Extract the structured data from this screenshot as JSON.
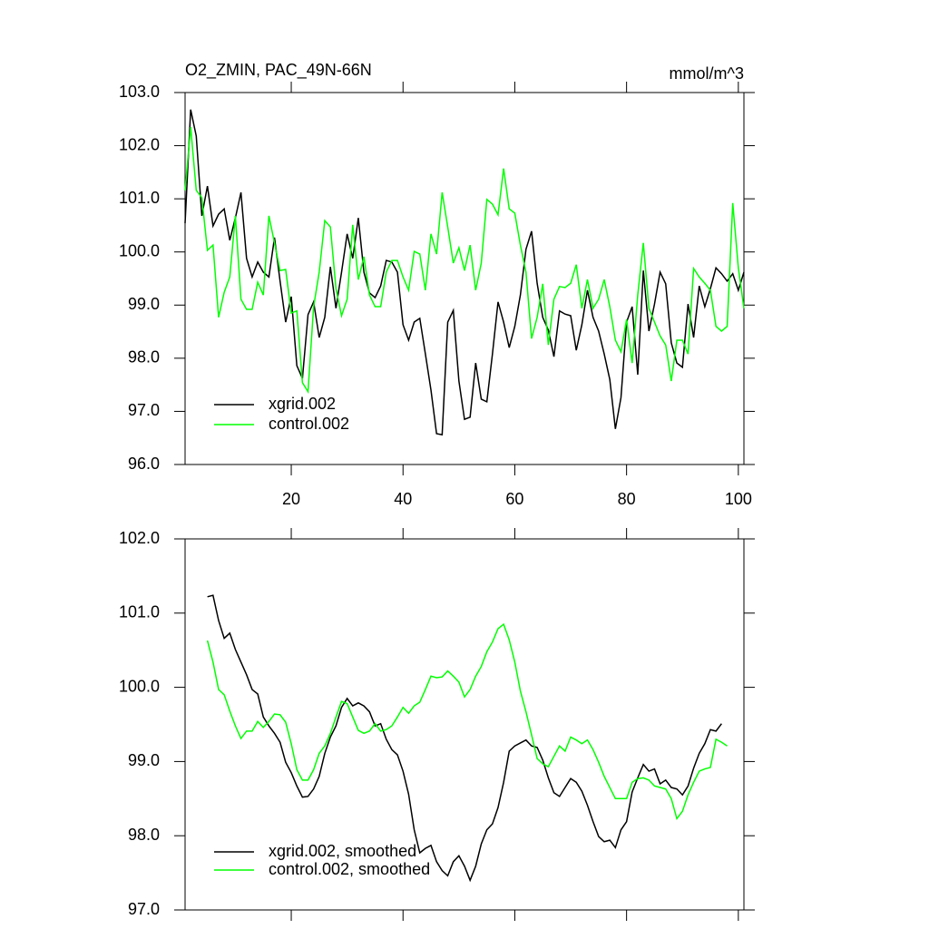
{
  "chart_data": [
    {
      "type": "line",
      "title": "O2_ZMIN, PAC_49N-66N",
      "units_label": "mmol/m^3",
      "x": [
        1,
        2,
        3,
        4,
        5,
        6,
        7,
        8,
        9,
        10,
        11,
        12,
        13,
        14,
        15,
        16,
        17,
        18,
        19,
        20,
        21,
        22,
        23,
        24,
        25,
        26,
        27,
        28,
        29,
        30,
        31,
        32,
        33,
        34,
        35,
        36,
        37,
        38,
        39,
        40,
        41,
        42,
        43,
        44,
        45,
        46,
        47,
        48,
        49,
        50,
        51,
        52,
        53,
        54,
        55,
        56,
        57,
        58,
        59,
        60,
        61,
        62,
        63,
        64,
        65,
        66,
        67,
        68,
        69,
        70,
        71,
        72,
        73,
        74,
        75,
        76,
        77,
        78,
        79,
        80,
        81,
        82,
        83,
        84,
        85,
        86,
        87,
        88,
        89,
        90,
        91,
        92,
        93,
        94,
        95,
        96,
        97,
        98,
        99,
        100,
        101
      ],
      "series": [
        {
          "name": "xgrid.002",
          "color": "#000000",
          "values": [
            100.54,
            102.68,
            102.18,
            100.68,
            101.24,
            100.49,
            100.71,
            100.81,
            100.22,
            100.64,
            101.12,
            99.88,
            99.53,
            99.81,
            99.62,
            99.53,
            100.27,
            99.45,
            98.68,
            99.16,
            97.86,
            97.62,
            98.82,
            99.06,
            98.39,
            98.77,
            99.72,
            98.94,
            99.62,
            100.34,
            99.88,
            100.64,
            99.62,
            99.23,
            99.14,
            99.36,
            99.84,
            99.81,
            99.62,
            98.63,
            98.34,
            98.68,
            98.75,
            98.08,
            97.4,
            96.58,
            96.56,
            98.68,
            98.9,
            97.57,
            96.85,
            96.89,
            97.91,
            97.23,
            97.18,
            98.08,
            99.06,
            98.68,
            98.2,
            98.6,
            99.19,
            100.05,
            100.39,
            99.41,
            98.77,
            98.53,
            98.03,
            98.89,
            98.83,
            98.8,
            98.15,
            98.63,
            99.28,
            98.77,
            98.51,
            98.08,
            97.6,
            96.67,
            97.26,
            98.68,
            98.97,
            97.69,
            99.65,
            98.51,
            99.02,
            99.62,
            99.4,
            98.29,
            97.91,
            97.83,
            99.02,
            98.39,
            99.36,
            98.97,
            99.31,
            99.7,
            99.59,
            99.45,
            99.59,
            99.28,
            99.62
          ]
        },
        {
          "name": "control.002",
          "color": "#00ff00",
          "values": [
            101.16,
            102.35,
            101.16,
            101.02,
            100.03,
            100.13,
            98.77,
            99.24,
            99.53,
            100.68,
            99.11,
            98.92,
            98.92,
            99.43,
            99.19,
            100.68,
            100.17,
            99.65,
            99.67,
            98.85,
            98.89,
            97.54,
            97.37,
            98.97,
            99.62,
            100.59,
            100.47,
            99.31,
            98.8,
            99.11,
            100.51,
            99.48,
            99.91,
            99.19,
            98.97,
            98.97,
            99.62,
            99.84,
            99.84,
            99.53,
            99.28,
            100.01,
            99.96,
            99.28,
            100.34,
            99.96,
            101.12,
            100.47,
            99.79,
            100.08,
            99.65,
            100.13,
            99.28,
            99.79,
            100.99,
            100.9,
            100.7,
            101.57,
            100.81,
            100.73,
            100.13,
            99.62,
            98.37,
            98.77,
            99.4,
            98.25,
            99.11,
            99.35,
            99.33,
            99.41,
            99.76,
            98.94,
            99.48,
            98.94,
            99.11,
            99.48,
            98.97,
            98.34,
            98.12,
            98.73,
            97.91,
            99.19,
            100.17,
            98.94,
            98.68,
            98.42,
            98.25,
            97.57,
            98.34,
            98.34,
            98.08,
            99.69,
            99.53,
            99.41,
            99.28,
            98.6,
            98.51,
            98.6,
            100.92,
            99.7,
            98.94
          ]
        }
      ],
      "xlim": [
        1,
        101
      ],
      "xticks": [
        20,
        40,
        60,
        80,
        100
      ],
      "ylim": [
        96,
        103
      ],
      "yticks": [
        {
          "value": 96,
          "label": "96.0"
        },
        {
          "value": 97,
          "label": "97.0"
        },
        {
          "value": 98,
          "label": "98.0"
        },
        {
          "value": 99,
          "label": "99.0"
        },
        {
          "value": 100,
          "label": "100.0"
        },
        {
          "value": 101,
          "label": "101.0"
        },
        {
          "value": 102,
          "label": "102.0"
        },
        {
          "value": 103,
          "label": "103.0"
        }
      ],
      "legend": "lower left"
    },
    {
      "type": "line",
      "x": [
        5,
        6,
        7,
        8,
        9,
        10,
        11,
        12,
        13,
        14,
        15,
        16,
        17,
        18,
        19,
        20,
        21,
        22,
        23,
        24,
        25,
        26,
        27,
        28,
        29,
        30,
        31,
        32,
        33,
        34,
        35,
        36,
        37,
        38,
        39,
        40,
        41,
        42,
        43,
        44,
        45,
        46,
        47,
        48,
        49,
        50,
        51,
        52,
        53,
        54,
        55,
        56,
        57,
        58,
        59,
        60,
        61,
        62,
        63,
        64,
        65,
        66,
        67,
        68,
        69,
        70,
        71,
        72,
        73,
        74,
        75,
        76,
        77,
        78,
        79,
        80,
        81,
        82,
        83,
        84,
        85,
        86,
        87,
        88,
        89,
        90,
        91,
        92,
        93,
        94,
        95,
        96,
        97,
        98
      ],
      "series": [
        {
          "name": "xgrid.002, smoothed",
          "color": "#000000",
          "values": [
            101.22,
            101.24,
            100.9,
            100.66,
            100.73,
            100.51,
            100.34,
            100.17,
            99.97,
            99.91,
            99.6,
            99.48,
            99.38,
            99.26,
            98.99,
            98.85,
            98.67,
            98.52,
            98.53,
            98.63,
            98.8,
            99.11,
            99.33,
            99.48,
            99.73,
            99.85,
            99.75,
            99.79,
            99.75,
            99.67,
            99.48,
            99.51,
            99.3,
            99.16,
            99.09,
            98.87,
            98.56,
            98.08,
            97.77,
            97.83,
            97.87,
            97.65,
            97.53,
            97.46,
            97.65,
            97.73,
            97.59,
            97.4,
            97.59,
            97.89,
            98.08,
            98.16,
            98.38,
            98.72,
            99.14,
            99.21,
            99.25,
            99.29,
            99.21,
            99.19,
            99.02,
            98.78,
            98.58,
            98.53,
            98.65,
            98.77,
            98.72,
            98.6,
            98.41,
            98.19,
            97.99,
            97.92,
            97.94,
            97.84,
            98.08,
            98.19,
            98.59,
            98.78,
            98.96,
            98.87,
            98.9,
            98.7,
            98.75,
            98.65,
            98.63,
            98.55,
            98.67,
            98.91,
            99.11,
            99.24,
            99.43,
            99.41,
            99.51,
            null
          ]
        },
        {
          "name": "control.002, smoothed",
          "color": "#00ff00",
          "values": [
            100.63,
            100.34,
            99.97,
            99.9,
            99.68,
            99.48,
            99.31,
            99.41,
            99.41,
            99.54,
            99.46,
            99.54,
            99.64,
            99.63,
            99.53,
            99.24,
            98.89,
            98.75,
            98.75,
            98.89,
            99.11,
            99.21,
            99.38,
            99.6,
            99.81,
            99.78,
            99.6,
            99.42,
            99.38,
            99.41,
            99.51,
            99.41,
            99.43,
            99.48,
            99.6,
            99.73,
            99.65,
            99.75,
            99.8,
            99.97,
            100.15,
            100.13,
            100.14,
            100.22,
            100.15,
            100.07,
            99.87,
            99.97,
            100.15,
            100.28,
            100.48,
            100.61,
            100.79,
            100.85,
            100.64,
            100.34,
            99.95,
            99.67,
            99.36,
            99.04,
            98.97,
            98.93,
            99.07,
            99.21,
            99.14,
            99.33,
            99.29,
            99.24,
            99.29,
            99.16,
            98.99,
            98.8,
            98.65,
            98.5,
            98.5,
            98.5,
            98.72,
            98.77,
            98.78,
            98.75,
            98.67,
            98.65,
            98.63,
            98.5,
            98.23,
            98.33,
            98.55,
            98.72,
            98.87,
            98.9,
            98.92,
            99.3,
            99.26,
            99.21
          ]
        }
      ],
      "xlim": [
        1,
        101
      ],
      "xticks": [
        20,
        40,
        60,
        80,
        100
      ],
      "ylim": [
        97,
        102
      ],
      "yticks": [
        {
          "value": 97,
          "label": "97.0"
        },
        {
          "value": 98,
          "label": "98.0"
        },
        {
          "value": 99,
          "label": "99.0"
        },
        {
          "value": 100,
          "label": "100.0"
        },
        {
          "value": 101,
          "label": "101.0"
        },
        {
          "value": 102,
          "label": "102.0"
        }
      ],
      "legend": "lower left"
    }
  ]
}
